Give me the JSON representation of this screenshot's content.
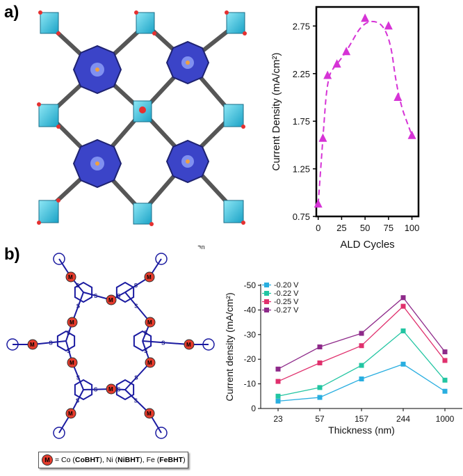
{
  "panel_labels": {
    "a": "a)",
    "b": "b)"
  },
  "caption": {
    "metal_symbol": "M",
    "segments": [
      {
        "text": " = Co (",
        "bold": false
      },
      {
        "text": "CoBHT",
        "bold": true
      },
      {
        "text": "), Ni (",
        "bold": false
      },
      {
        "text": "NiBHT",
        "bold": true
      },
      {
        "text": "), Fe (",
        "bold": false
      },
      {
        "text": "FeBHT",
        "bold": true
      },
      {
        "text": ")",
        "bold": false
      }
    ]
  },
  "structure_b": {
    "polymer_n": "n",
    "atom_S": "S",
    "atom_M": "M"
  },
  "chart_data": [
    {
      "type": "line",
      "title": "",
      "xlabel": "ALD Cycles",
      "ylabel": "Current Density (mA/cm²)",
      "xlim": [
        -2,
        107
      ],
      "ylim": [
        0.75,
        2.95
      ],
      "xticks": [
        0,
        25,
        50,
        75,
        100
      ],
      "yticks": [
        0.75,
        1.25,
        1.75,
        2.25,
        2.75
      ],
      "ytick_labels": [
        "0.75",
        "1.25",
        "1.75",
        "2.25",
        "2.75"
      ],
      "series": [
        {
          "color": "#d633d6",
          "style": "dashed-smooth",
          "marker": "triangle",
          "x": [
            0,
            5,
            10,
            20,
            30,
            50,
            75,
            85,
            100
          ],
          "y": [
            0.88,
            1.57,
            2.23,
            2.35,
            2.48,
            2.83,
            2.75,
            2.0,
            1.6
          ]
        }
      ]
    },
    {
      "type": "line",
      "title": "",
      "xlabel": "Thickness (nm)",
      "ylabel": "Current density (mA/cm²)",
      "categories": [
        "23",
        "57",
        "157",
        "244",
        "1000"
      ],
      "ylim": [
        0,
        -50
      ],
      "yticks": [
        0,
        -10,
        -20,
        -30,
        -40,
        -50
      ],
      "legend_position": "top-left",
      "series": [
        {
          "name": "-0.20 V",
          "color": "#29aee0",
          "values": [
            -3,
            -4.5,
            -12,
            -18,
            -7
          ]
        },
        {
          "name": "-0.22 V",
          "color": "#22c5a2",
          "values": [
            -5,
            -8.5,
            -17.5,
            -31.5,
            -11.5
          ]
        },
        {
          "name": "-0.25 V",
          "color": "#e0306d",
          "values": [
            -11,
            -18.5,
            -25.5,
            -41.5,
            -19.5
          ]
        },
        {
          "name": "-0.27 V",
          "color": "#8e2a8a",
          "values": [
            -16,
            -25,
            -30.5,
            -45,
            -23
          ]
        }
      ]
    }
  ]
}
